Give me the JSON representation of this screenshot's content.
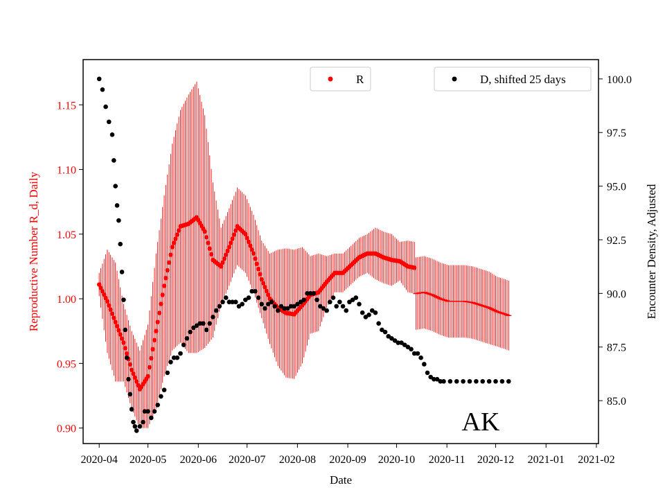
{
  "chart_data": {
    "type": "scatter",
    "annotation": "AK",
    "xlabel": "Date",
    "ylabel_left": "Reproductive Number R_d, Daily",
    "ylabel_right": "Encounter Density, Adjusted",
    "x_ticks": [
      "2020-04",
      "2020-05",
      "2020-06",
      "2020-07",
      "2020-08",
      "2020-09",
      "2020-10",
      "2020-11",
      "2020-12",
      "2021-01",
      "2021-02"
    ],
    "y_left_ticks": [
      "0.90",
      "0.95",
      "1.00",
      "1.05",
      "1.10",
      "1.15"
    ],
    "y_right_ticks": [
      "85.0",
      "87.5",
      "90.0",
      "92.5",
      "95.0",
      "97.5",
      "100.0"
    ],
    "y_left_range": [
      0.888,
      1.185
    ],
    "y_right_range": [
      83.0,
      100.9
    ],
    "x_range_days": [
      -9.9,
      307.3
    ],
    "legend": [
      {
        "label": "R",
        "color": "#ff0000",
        "location": "top-center"
      },
      {
        "label": "D, shifted 25 days",
        "color": "#000000",
        "location": "top-right"
      }
    ],
    "series": [
      {
        "name": "R",
        "axis": "left",
        "color": "#ff0000",
        "error_bars": true,
        "points_days_value_halfwidth": [
          [
            0,
            1.011,
            0.009
          ],
          [
            5,
            0.998,
            0.04
          ],
          [
            10,
            0.982,
            0.046
          ],
          [
            15,
            0.966,
            0.03
          ],
          [
            20,
            0.945,
            0.03
          ],
          [
            25,
            0.93,
            0.03
          ],
          [
            30,
            0.94,
            0.04
          ],
          [
            35,
            0.975,
            0.06
          ],
          [
            40,
            1.01,
            0.07
          ],
          [
            45,
            1.04,
            0.08
          ],
          [
            50,
            1.056,
            0.09
          ],
          [
            55,
            1.058,
            0.1
          ],
          [
            60,
            1.063,
            0.105
          ],
          [
            65,
            1.052,
            0.09
          ],
          [
            70,
            1.03,
            0.06
          ],
          [
            75,
            1.025,
            0.03
          ],
          [
            80,
            1.04,
            0.03
          ],
          [
            85,
            1.056,
            0.03
          ],
          [
            90,
            1.05,
            0.03
          ],
          [
            95,
            1.035,
            0.03
          ],
          [
            100,
            1.015,
            0.03
          ],
          [
            105,
            1.0,
            0.035
          ],
          [
            110,
            0.993,
            0.045
          ],
          [
            115,
            0.989,
            0.05
          ],
          [
            120,
            0.988,
            0.05
          ],
          [
            125,
            0.995,
            0.045
          ],
          [
            130,
            1.003,
            0.03
          ],
          [
            135,
            1.005,
            0.03
          ],
          [
            140,
            1.013,
            0.02
          ],
          [
            145,
            1.02,
            0.015
          ],
          [
            150,
            1.02,
            0.015
          ],
          [
            155,
            1.026,
            0.015
          ],
          [
            160,
            1.032,
            0.015
          ],
          [
            165,
            1.035,
            0.015
          ],
          [
            170,
            1.035,
            0.02
          ],
          [
            175,
            1.032,
            0.02
          ],
          [
            180,
            1.03,
            0.02
          ],
          [
            185,
            1.029,
            0.015
          ],
          [
            190,
            1.025,
            0.02
          ],
          [
            194,
            1.024,
            0.02
          ],
          [
            195,
            1.004,
            0.028
          ],
          [
            200,
            1.005,
            0.028
          ],
          [
            205,
            1.003,
            0.028
          ],
          [
            210,
            1.0,
            0.028
          ],
          [
            215,
            0.998,
            0.028
          ],
          [
            220,
            0.998,
            0.028
          ],
          [
            225,
            0.998,
            0.028
          ],
          [
            230,
            0.997,
            0.028
          ],
          [
            235,
            0.995,
            0.028
          ],
          [
            240,
            0.993,
            0.028
          ],
          [
            245,
            0.99,
            0.027
          ],
          [
            250,
            0.988,
            0.027
          ],
          [
            252,
            0.987,
            0.027
          ]
        ]
      },
      {
        "name": "D, shifted 25 days",
        "axis": "right",
        "color": "#000000",
        "points_days_value": [
          [
            0,
            100.0
          ],
          [
            2,
            99.5
          ],
          [
            4,
            98.7
          ],
          [
            6,
            98.0
          ],
          [
            8,
            97.4
          ],
          [
            9,
            96.2
          ],
          [
            10,
            95.0
          ],
          [
            11,
            94.1
          ],
          [
            12,
            93.4
          ],
          [
            13,
            92.3
          ],
          [
            14,
            91.0
          ],
          [
            15,
            89.7
          ],
          [
            16,
            88.3
          ],
          [
            17,
            87.0
          ],
          [
            18,
            86.0
          ],
          [
            19,
            85.3
          ],
          [
            20,
            84.6
          ],
          [
            21,
            84.0
          ],
          [
            22,
            83.8
          ],
          [
            23,
            83.6
          ],
          [
            25,
            83.8
          ],
          [
            27,
            84.0
          ],
          [
            28,
            84.5
          ],
          [
            30,
            84.5
          ],
          [
            32,
            84.2
          ],
          [
            34,
            84.5
          ],
          [
            36,
            84.8
          ],
          [
            38,
            85.2
          ],
          [
            40,
            85.5
          ],
          [
            42,
            86.3
          ],
          [
            44,
            86.8
          ],
          [
            46,
            87.0
          ],
          [
            48,
            87.0
          ],
          [
            50,
            87.2
          ],
          [
            52,
            87.6
          ],
          [
            54,
            87.9
          ],
          [
            56,
            88.2
          ],
          [
            58,
            88.4
          ],
          [
            60,
            88.5
          ],
          [
            62,
            88.6
          ],
          [
            64,
            88.6
          ],
          [
            66,
            88.3
          ],
          [
            68,
            88.6
          ],
          [
            70,
            88.9
          ],
          [
            72,
            89.2
          ],
          [
            74,
            89.4
          ],
          [
            76,
            89.6
          ],
          [
            78,
            89.8
          ],
          [
            80,
            89.6
          ],
          [
            82,
            89.6
          ],
          [
            84,
            89.6
          ],
          [
            86,
            89.4
          ],
          [
            88,
            89.5
          ],
          [
            90,
            89.7
          ],
          [
            92,
            89.8
          ],
          [
            94,
            90.1
          ],
          [
            96,
            90.1
          ],
          [
            98,
            89.8
          ],
          [
            100,
            89.5
          ],
          [
            102,
            89.3
          ],
          [
            104,
            89.5
          ],
          [
            106,
            89.6
          ],
          [
            108,
            89.4
          ],
          [
            110,
            89.2
          ],
          [
            112,
            89.4
          ],
          [
            114,
            89.3
          ],
          [
            116,
            89.3
          ],
          [
            118,
            89.4
          ],
          [
            120,
            89.4
          ],
          [
            122,
            89.5
          ],
          [
            124,
            89.6
          ],
          [
            126,
            89.7
          ],
          [
            128,
            90.0
          ],
          [
            130,
            90.0
          ],
          [
            132,
            90.0
          ],
          [
            134,
            89.7
          ],
          [
            136,
            89.4
          ],
          [
            138,
            89.3
          ],
          [
            140,
            89.2
          ],
          [
            142,
            89.6
          ],
          [
            144,
            89.8
          ],
          [
            146,
            89.4
          ],
          [
            148,
            89.6
          ],
          [
            150,
            89.4
          ],
          [
            152,
            89.2
          ],
          [
            154,
            89.6
          ],
          [
            156,
            89.7
          ],
          [
            158,
            89.8
          ],
          [
            160,
            89.5
          ],
          [
            162,
            89.1
          ],
          [
            164,
            88.9
          ],
          [
            166,
            89.0
          ],
          [
            168,
            89.2
          ],
          [
            170,
            89.1
          ],
          [
            172,
            88.6
          ],
          [
            174,
            88.3
          ],
          [
            176,
            88.2
          ],
          [
            178,
            88.0
          ],
          [
            180,
            87.9
          ],
          [
            182,
            87.8
          ],
          [
            184,
            87.7
          ],
          [
            186,
            87.7
          ],
          [
            188,
            87.6
          ],
          [
            190,
            87.5
          ],
          [
            192,
            87.4
          ],
          [
            194,
            87.2
          ],
          [
            196,
            87.2
          ],
          [
            198,
            87.0
          ],
          [
            200,
            86.7
          ],
          [
            202,
            86.3
          ],
          [
            204,
            86.1
          ],
          [
            206,
            86.0
          ],
          [
            208,
            86.0
          ],
          [
            210,
            85.9
          ],
          [
            212,
            85.9
          ],
          [
            216,
            85.9
          ],
          [
            220,
            85.9
          ],
          [
            224,
            85.9
          ],
          [
            228,
            85.9
          ],
          [
            232,
            85.9
          ],
          [
            236,
            85.9
          ],
          [
            240,
            85.9
          ],
          [
            244,
            85.9
          ],
          [
            248,
            85.9
          ],
          [
            252,
            85.9
          ]
        ]
      }
    ]
  }
}
